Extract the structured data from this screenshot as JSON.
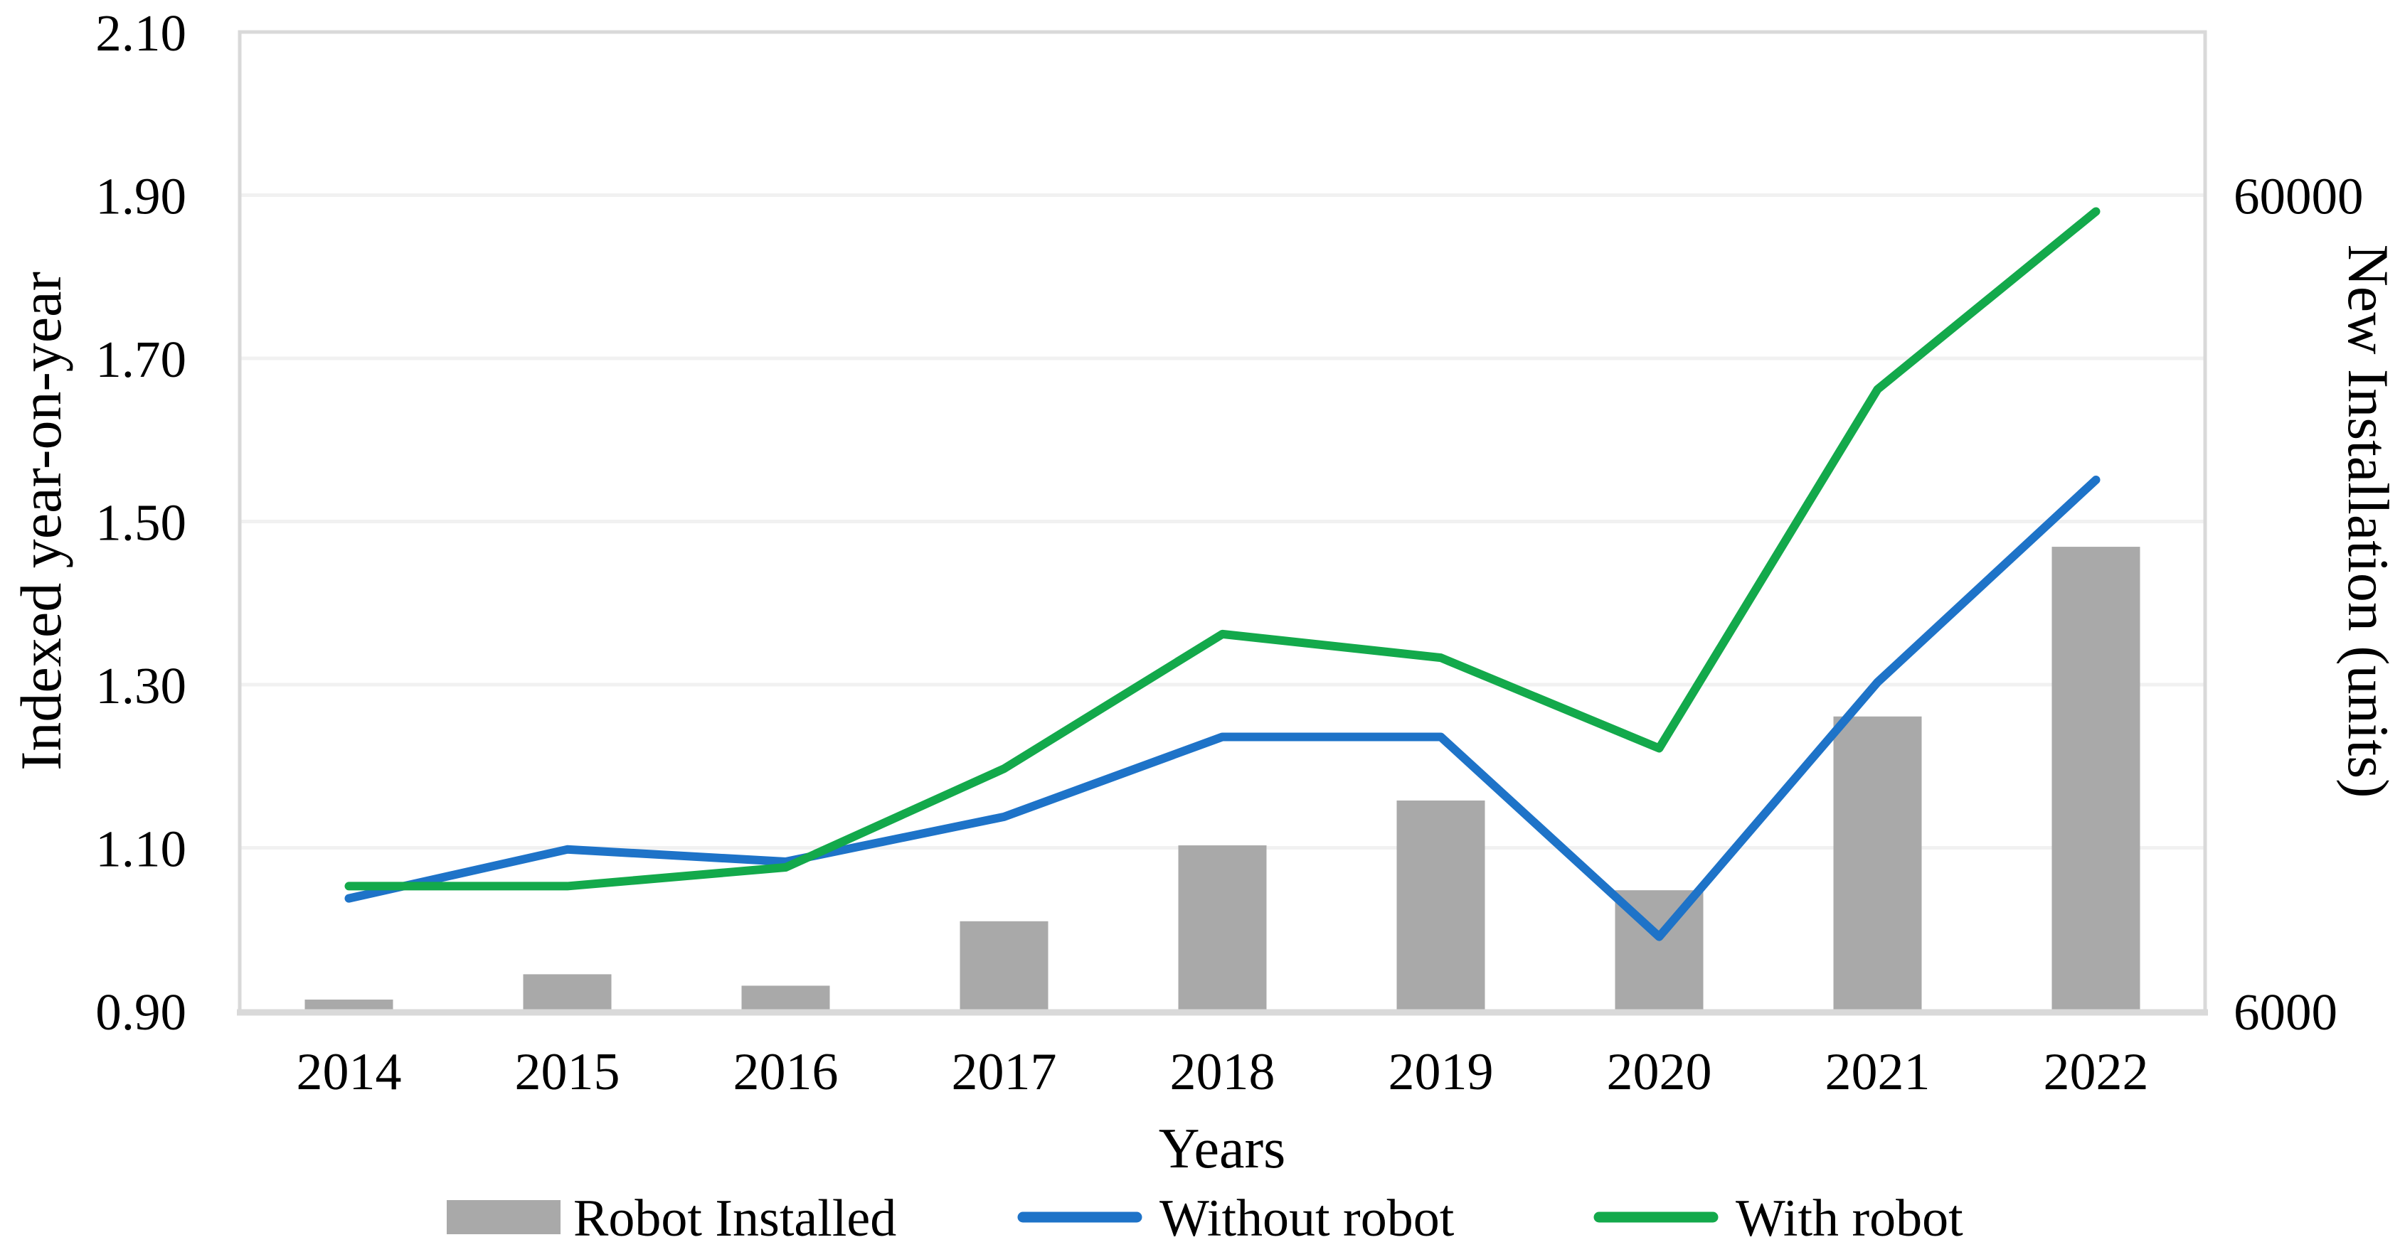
{
  "chart_data": {
    "type": "combo-bar-line",
    "title": "",
    "categories": [
      "2014",
      "2015",
      "2016",
      "2017",
      "2018",
      "2019",
      "2020",
      "2021",
      "2022"
    ],
    "x_axis": {
      "label": "Years"
    },
    "y_left": {
      "label": "Indexed year-on-year",
      "min": 0.9,
      "max": 2.1,
      "tick_step": 0.2,
      "ticks": [
        "2.10",
        "1.90",
        "1.70",
        "1.50",
        "1.30",
        "1.10",
        "0.90"
      ],
      "grid": true
    },
    "y_right": {
      "label": "New Installation (units)",
      "scale": "log",
      "ticks": [
        {
          "label": "60000",
          "aligns_with_left_value": 1.9
        },
        {
          "label": "6000",
          "aligns_with_left_value": 0.9
        }
      ]
    },
    "series": [
      {
        "name": "Robot Installed",
        "type": "bar",
        "axis": "right",
        "color": "#A9A9A9",
        "values_units_estimated": [
          6200,
          6650,
          6440,
          7730,
          9580,
          10900,
          8440,
          13750,
          22200
        ],
        "values_left_axis_equiv": [
          0.914,
          0.945,
          0.931,
          1.01,
          1.103,
          1.158,
          1.048,
          1.261,
          1.469
        ]
      },
      {
        "name": "Without robot",
        "type": "line",
        "axis": "left",
        "color": "#1E73C8",
        "values": [
          1.038,
          1.098,
          1.083,
          1.138,
          1.236,
          1.236,
          0.991,
          1.303,
          1.551
        ]
      },
      {
        "name": "With robot",
        "type": "line",
        "axis": "left",
        "color": "#13A94B",
        "values": [
          1.053,
          1.053,
          1.076,
          1.197,
          1.362,
          1.333,
          1.222,
          1.662,
          1.88
        ]
      }
    ],
    "legend": {
      "position": "bottom",
      "items": [
        {
          "label": "Robot Installed",
          "marker": "bar-swatch",
          "color": "#A9A9A9"
        },
        {
          "label": "Without robot",
          "marker": "line",
          "color": "#1E73C8"
        },
        {
          "label": "With robot",
          "marker": "line",
          "color": "#13A94B"
        }
      ]
    },
    "colors": {
      "grid": "#F1F1F1",
      "frame": "#D9D9D9",
      "background": "#FFFFFF",
      "text": "#000000"
    }
  }
}
